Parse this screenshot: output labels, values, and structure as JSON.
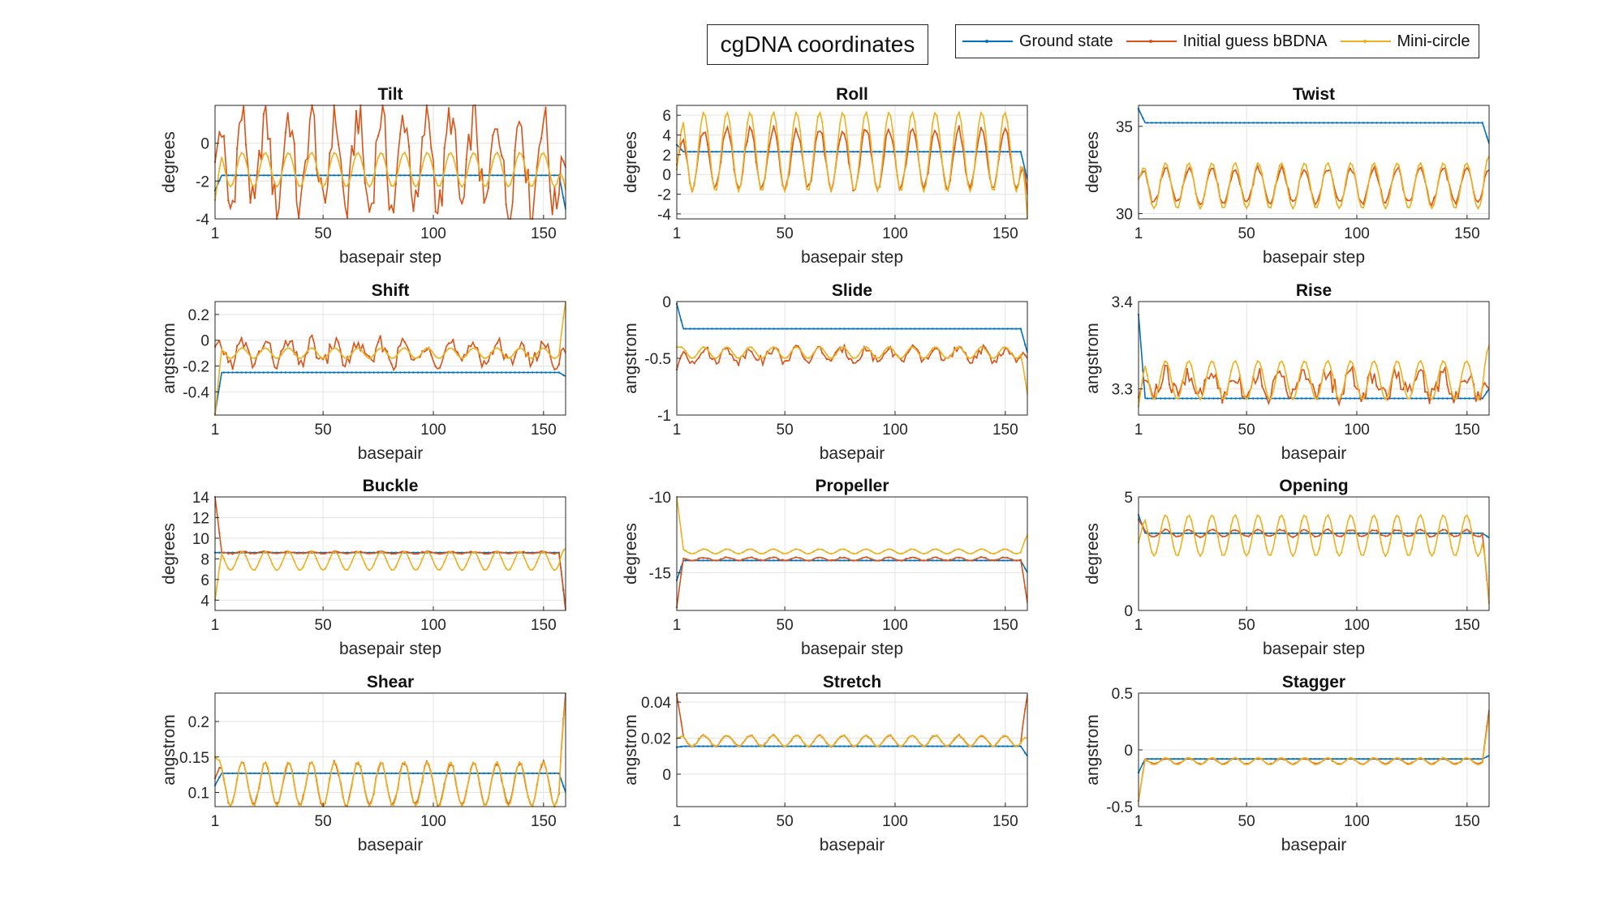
{
  "figure_title": "cgDNA coordinates",
  "legend": [
    {
      "label": "Ground state",
      "color": "#0072BD"
    },
    {
      "label": "Initial guess bBDNA",
      "color": "#D95319"
    },
    {
      "label": "Mini-circle",
      "color": "#EDB120"
    }
  ],
  "chart_data": [
    {
      "type": "line",
      "title": "Tilt",
      "xlabel": "basepair step",
      "ylabel": "degrees",
      "xlim": [
        1,
        160
      ],
      "ylim": [
        -4,
        2
      ],
      "yticks": [
        -4,
        -2,
        0
      ],
      "xticks": [
        1,
        50,
        100,
        150
      ],
      "grid": true,
      "series": [
        {
          "name": "Ground state",
          "base": -1.7,
          "amp": 0,
          "period": 10.5,
          "end_start": -2.5,
          "end_stop": -3.5
        },
        {
          "name": "Initial guess bBDNA",
          "base": -1.0,
          "amp": 2.5,
          "period": 10.5,
          "noise": 1.2,
          "end_start": -1.0,
          "end_stop": -1.3
        },
        {
          "name": "Mini-circle",
          "base": -1.4,
          "amp": 0.9,
          "period": 10.5,
          "end_start": -3.0,
          "end_stop": -2.5
        }
      ]
    },
    {
      "type": "line",
      "title": "Roll",
      "xlabel": "basepair step",
      "ylabel": "degrees",
      "xlim": [
        1,
        160
      ],
      "ylim": [
        -4.5,
        7
      ],
      "yticks": [
        -4,
        -2,
        0,
        2,
        4,
        6
      ],
      "xticks": [
        1,
        50,
        100,
        150
      ],
      "grid": true,
      "series": [
        {
          "name": "Ground state",
          "base": 2.3,
          "amp": 0,
          "period": 10.5,
          "end_start": 3.0,
          "end_stop": -0.5
        },
        {
          "name": "Initial guess bBDNA",
          "base": 1.6,
          "amp": 3.0,
          "period": 10.5,
          "noise": 0.4,
          "end_start": 1.0,
          "end_stop": -2.0
        },
        {
          "name": "Mini-circle",
          "base": 2.3,
          "amp": 4.0,
          "period": 10.5,
          "end_start": 0.5,
          "end_stop": -4.5
        }
      ]
    },
    {
      "type": "line",
      "title": "Twist",
      "xlabel": "basepair step",
      "ylabel": "degrees",
      "xlim": [
        1,
        160
      ],
      "ylim": [
        29.7,
        36.2
      ],
      "yticks": [
        30,
        35
      ],
      "xticks": [
        1,
        50,
        100,
        150
      ],
      "grid": true,
      "series": [
        {
          "name": "Ground state",
          "base": 35.2,
          "amp": 0,
          "period": 10.5,
          "end_start": 36.0,
          "end_stop": 34.0
        },
        {
          "name": "Initial guess bBDNA",
          "base": 31.6,
          "amp": 1.0,
          "period": 10.5,
          "noise": 0.15,
          "end_start": 32.0,
          "end_stop": 32.5
        },
        {
          "name": "Mini-circle",
          "base": 31.6,
          "amp": 1.3,
          "period": 10.5,
          "end_start": 32.0,
          "end_stop": 33.3
        }
      ]
    },
    {
      "type": "line",
      "title": "Shift",
      "xlabel": "basepair",
      "ylabel": "angstrom",
      "xlim": [
        1,
        160
      ],
      "ylim": [
        -0.58,
        0.3
      ],
      "yticks": [
        -0.4,
        -0.2,
        0,
        0.2
      ],
      "xticks": [
        1,
        50,
        100,
        150
      ],
      "grid": true,
      "series": [
        {
          "name": "Ground state",
          "base": -0.25,
          "amp": 0,
          "period": 10.5,
          "end_start": -0.57,
          "end_stop": -0.28
        },
        {
          "name": "Initial guess bBDNA",
          "base": -0.1,
          "amp": 0.08,
          "period": 10.5,
          "noise": 0.06,
          "end_start": -0.05,
          "end_stop": -0.1
        },
        {
          "name": "Mini-circle",
          "base": -0.1,
          "amp": 0.04,
          "period": 10.5,
          "end_start": -0.58,
          "end_stop": 0.3
        }
      ]
    },
    {
      "type": "line",
      "title": "Slide",
      "xlabel": "basepair",
      "ylabel": "angstrom",
      "xlim": [
        1,
        160
      ],
      "ylim": [
        -1,
        0
      ],
      "yticks": [
        -1,
        -0.5,
        0
      ],
      "xticks": [
        1,
        50,
        100,
        150
      ],
      "grid": true,
      "series": [
        {
          "name": "Ground state",
          "base": -0.24,
          "amp": 0,
          "period": 10.5,
          "end_start": -0.02,
          "end_stop": -0.45
        },
        {
          "name": "Initial guess bBDNA",
          "base": -0.47,
          "amp": 0.05,
          "period": 10.5,
          "noise": 0.04,
          "end_start": -0.6,
          "end_stop": -0.5
        },
        {
          "name": "Mini-circle",
          "base": -0.45,
          "amp": 0.05,
          "period": 10.5,
          "end_start": -0.4,
          "end_stop": -0.82
        }
      ]
    },
    {
      "type": "line",
      "title": "Rise",
      "xlabel": "basepair",
      "ylabel": "angstrom",
      "xlim": [
        1,
        160
      ],
      "ylim": [
        3.27,
        3.4
      ],
      "yticks": [
        3.3,
        3.4
      ],
      "xticks": [
        1,
        50,
        100,
        150
      ],
      "grid": true,
      "series": [
        {
          "name": "Ground state",
          "base": 3.289,
          "amp": 0,
          "period": 10.5,
          "end_start": 3.385,
          "end_stop": 3.3
        },
        {
          "name": "Initial guess bBDNA",
          "base": 3.305,
          "amp": 0.012,
          "period": 10.5,
          "noise": 0.012,
          "end_start": 3.29,
          "end_stop": 3.3
        },
        {
          "name": "Mini-circle",
          "base": 3.31,
          "amp": 0.022,
          "period": 10.5,
          "end_start": 3.28,
          "end_stop": 3.35
        }
      ]
    },
    {
      "type": "line",
      "title": "Buckle",
      "xlabel": "basepair step",
      "ylabel": "degrees",
      "xlim": [
        1,
        160
      ],
      "ylim": [
        3,
        14
      ],
      "yticks": [
        4,
        6,
        8,
        10,
        12,
        14
      ],
      "xticks": [
        1,
        50,
        100,
        150
      ],
      "grid": true,
      "series": [
        {
          "name": "Ground state",
          "base": 8.6,
          "amp": 0,
          "period": 10.5,
          "end_start": 8.6,
          "end_stop": 3.2
        },
        {
          "name": "Initial guess bBDNA",
          "base": 8.6,
          "amp": 0.1,
          "period": 10.5,
          "noise": 0.05,
          "end_start": 14,
          "end_stop": 3.0
        },
        {
          "name": "Mini-circle",
          "base": 7.8,
          "amp": 0.9,
          "period": 10.5,
          "end_start": 4.0,
          "end_stop": 9.0
        }
      ]
    },
    {
      "type": "line",
      "title": "Propeller",
      "xlabel": "basepair step",
      "ylabel": "degrees",
      "xlim": [
        1,
        160
      ],
      "ylim": [
        -17.5,
        -10
      ],
      "yticks": [
        -15,
        -10
      ],
      "xticks": [
        1,
        50,
        100,
        150
      ],
      "grid": true,
      "series": [
        {
          "name": "Ground state",
          "base": -14.2,
          "amp": 0,
          "period": 10.5,
          "end_start": -15.5,
          "end_stop": -15.0
        },
        {
          "name": "Initial guess bBDNA",
          "base": -14.1,
          "amp": 0.1,
          "period": 10.5,
          "noise": 0.03,
          "end_start": -17.3,
          "end_stop": -17.0
        },
        {
          "name": "Mini-circle",
          "base": -13.6,
          "amp": 0.15,
          "period": 10.5,
          "end_start": -10.0,
          "end_stop": -12.5
        }
      ]
    },
    {
      "type": "line",
      "title": "Opening",
      "xlabel": "basepair step",
      "ylabel": "degrees",
      "xlim": [
        1,
        160
      ],
      "ylim": [
        0,
        5
      ],
      "yticks": [
        0,
        5
      ],
      "xticks": [
        1,
        50,
        100,
        150
      ],
      "grid": true,
      "series": [
        {
          "name": "Ground state",
          "base": 3.4,
          "amp": 0,
          "period": 10.5,
          "end_start": 4.2,
          "end_stop": 3.2
        },
        {
          "name": "Initial guess bBDNA",
          "base": 3.4,
          "amp": 0.15,
          "period": 10.5,
          "noise": 0.03,
          "end_start": 4.0,
          "end_stop": 0.3
        },
        {
          "name": "Mini-circle",
          "base": 3.3,
          "amp": 0.9,
          "period": 10.5,
          "end_start": 3.0,
          "end_stop": 0.3
        }
      ]
    },
    {
      "type": "line",
      "title": "Shear",
      "xlabel": "basepair",
      "ylabel": "angstrom",
      "xlim": [
        1,
        160
      ],
      "ylim": [
        0.08,
        0.24
      ],
      "yticks": [
        0.1,
        0.15,
        0.2
      ],
      "xticks": [
        1,
        50,
        100,
        150
      ],
      "grid": true,
      "series": [
        {
          "name": "Ground state",
          "base": 0.127,
          "amp": 0,
          "period": 10.5,
          "end_start": 0.11,
          "end_stop": 0.1
        },
        {
          "name": "Initial guess bBDNA",
          "base": 0.112,
          "amp": 0.03,
          "period": 10.5,
          "noise": 0.003,
          "end_start": 0.12,
          "end_stop": 0.24
        },
        {
          "name": "Mini-circle",
          "base": 0.112,
          "amp": 0.031,
          "period": 10.5,
          "end_start": 0.15,
          "end_stop": 0.23
        }
      ]
    },
    {
      "type": "line",
      "title": "Stretch",
      "xlabel": "basepair",
      "ylabel": "angstrom",
      "xlim": [
        1,
        160
      ],
      "ylim": [
        -0.018,
        0.045
      ],
      "yticks": [
        0,
        0.02,
        0.04
      ],
      "xticks": [
        1,
        50,
        100,
        150
      ],
      "grid": true,
      "series": [
        {
          "name": "Ground state",
          "base": 0.0155,
          "amp": 0,
          "period": 10.5,
          "end_start": 0.015,
          "end_stop": 0.01
        },
        {
          "name": "Initial guess bBDNA",
          "base": 0.0185,
          "amp": 0.003,
          "period": 10.5,
          "noise": 0.0004,
          "end_start": 0.044,
          "end_stop": 0.044
        },
        {
          "name": "Mini-circle",
          "base": 0.0185,
          "amp": 0.003,
          "period": 10.5,
          "end_start": 0.02,
          "end_stop": 0.02
        }
      ]
    },
    {
      "type": "line",
      "title": "Stagger",
      "xlabel": "basepair",
      "ylabel": "angstrom",
      "xlim": [
        1,
        160
      ],
      "ylim": [
        -0.5,
        0.5
      ],
      "yticks": [
        -0.5,
        0,
        0.5
      ],
      "xticks": [
        1,
        50,
        100,
        150
      ],
      "grid": true,
      "series": [
        {
          "name": "Ground state",
          "base": -0.08,
          "amp": 0,
          "period": 10.5,
          "end_start": -0.2,
          "end_stop": -0.05
        },
        {
          "name": "Initial guess bBDNA",
          "base": -0.1,
          "amp": 0.025,
          "period": 10.5,
          "noise": 0.005,
          "end_start": -0.45,
          "end_stop": 0.35
        },
        {
          "name": "Mini-circle",
          "base": -0.1,
          "amp": 0.03,
          "period": 10.5,
          "end_start": -0.45,
          "end_stop": 0.3
        }
      ]
    }
  ]
}
